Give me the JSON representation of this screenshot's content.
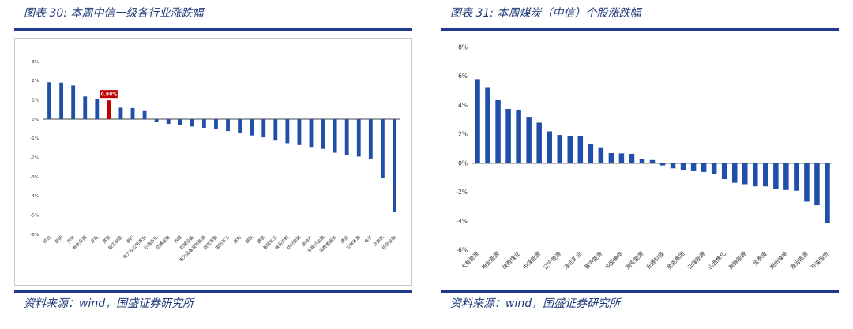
{
  "left": {
    "title": "图表 30:  本周中信一级各行业涨跌幅",
    "source": "资料来源：wind，国盛证券研究所"
  },
  "right": {
    "title": "图表 31:  本周煤炭（中信）个股涨跌幅",
    "source": "资料来源：wind，国盛证券研究所"
  },
  "chart_data": [
    {
      "type": "bar",
      "title": "",
      "xlabel": "",
      "ylabel": "",
      "ylim": [
        -6,
        3
      ],
      "yticks": [
        "3%",
        "2%",
        "1%",
        "0%",
        "-1%",
        "-2%",
        "-3%",
        "-4%",
        "-5%",
        "-6%"
      ],
      "categories": [
        "综合",
        "医药",
        "汽车",
        "有色金属",
        "家电",
        "煤炭",
        "轻工制造",
        "银行",
        "电力及公用事业",
        "石油石化",
        "交通运输",
        "传媒",
        "机械设备",
        "电力设备及新能源",
        "商贸零售",
        "国防军工",
        "建材",
        "钢铁",
        "建筑",
        "基础化工",
        "食品饮料",
        "纺织服装",
        "房地产",
        "非银行金融",
        "消费者服务",
        "通信",
        "农林牧渔",
        "电子",
        "计算机",
        "综合金融"
      ],
      "values": [
        1.92,
        1.9,
        1.75,
        1.18,
        1.05,
        0.98,
        0.6,
        0.58,
        0.42,
        -0.15,
        -0.25,
        -0.3,
        -0.38,
        -0.45,
        -0.52,
        -0.62,
        -0.72,
        -0.85,
        -0.95,
        -1.12,
        -1.25,
        -1.35,
        -1.45,
        -1.55,
        -1.75,
        -1.88,
        -1.95,
        -2.05,
        -3.05,
        -4.85
      ],
      "highlight_index": 5,
      "highlight_label": "0.98%",
      "colors": {
        "bar": "#1f4fa8",
        "highlight": "#c00000"
      }
    },
    {
      "type": "bar",
      "title": "",
      "xlabel": "",
      "ylabel": "",
      "ylim": [
        -6,
        8
      ],
      "yticks": [
        "8%",
        "6%",
        "4%",
        "2%",
        "0%",
        "-2%",
        "-4%",
        "-6%"
      ],
      "categories": [
        "大有能源",
        "",
        "电投能源",
        "",
        "陕西煤业",
        "",
        "中煤能源",
        "",
        "辽宁能源",
        "",
        "淮北矿业",
        "",
        "晋中能源",
        "",
        "中国神华",
        "",
        "潞安能源",
        "",
        "安源科技",
        "",
        "金能集团",
        "",
        "云煤能源",
        "",
        "山西焦化",
        "",
        "美锦能源",
        "",
        "宝泰隆",
        "",
        "郑州煤电",
        "",
        "淮河能源",
        "",
        "开滦股份"
      ],
      "values": [
        5.8,
        5.25,
        4.35,
        3.75,
        3.7,
        3.2,
        2.8,
        2.2,
        1.95,
        1.85,
        1.85,
        1.3,
        1.1,
        0.7,
        0.68,
        0.65,
        0.3,
        0.22,
        -0.15,
        -0.35,
        -0.5,
        -0.55,
        -0.6,
        -0.75,
        -1.1,
        -1.35,
        -1.45,
        -1.6,
        -1.6,
        -1.75,
        -1.85,
        -1.9,
        -2.65,
        -2.9,
        -4.15
      ],
      "colors": {
        "bar": "#1f4fa8"
      }
    }
  ]
}
